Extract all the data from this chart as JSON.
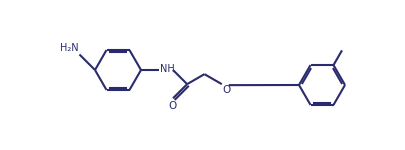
{
  "bg_color": "#ffffff",
  "line_color": "#2a2a6e",
  "text_color": "#2a2a6e",
  "lw": 1.5,
  "dbo": 0.018,
  "r": 0.23,
  "figsize": [
    4.05,
    1.5
  ],
  "dpi": 100,
  "xlim": [
    0,
    4.05
  ],
  "ylim": [
    0,
    1.5
  ]
}
